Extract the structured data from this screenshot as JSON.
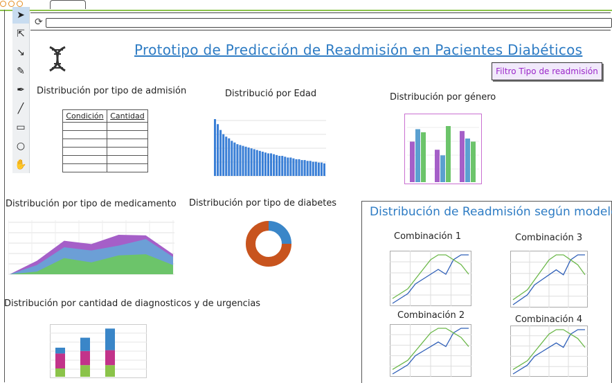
{
  "app": {
    "title": "Prototipo de Predicción de Readmisión en Pacientes Diabéticos",
    "filter_button": "Filtro Tipo de readmisión",
    "colors": {
      "title_blue": "#2e7cc4",
      "filter_text": "#9b27c9",
      "filter_bg": "#f1e9fb"
    }
  },
  "toolbar": {
    "tools": [
      {
        "name": "selection-arrow-icon",
        "glyph": "➤"
      },
      {
        "name": "hollow-arrow-icon",
        "glyph": "⇱"
      },
      {
        "name": "pen-select-icon",
        "glyph": "↘"
      },
      {
        "name": "pencil-icon",
        "glyph": "✎"
      },
      {
        "name": "ink-pen-icon",
        "glyph": "✒"
      },
      {
        "name": "line-icon",
        "glyph": "╱"
      },
      {
        "name": "rectangle-icon",
        "glyph": "▭"
      },
      {
        "name": "circle-icon",
        "glyph": "○"
      },
      {
        "name": "hand-icon",
        "glyph": "✋"
      }
    ]
  },
  "sections": {
    "admission": {
      "title": "Distribución por tipo de admisión",
      "columns": [
        "Condición",
        "Cantidad"
      ],
      "rows": 6
    },
    "age": {
      "title": "Distribució por Edad"
    },
    "gender": {
      "title": "Distribución por género"
    },
    "medication": {
      "title": "Distribución por tipo de medicamento"
    },
    "diabetes": {
      "title": "Distribución por tipo de diabetes"
    },
    "diagnostics": {
      "title": "Distribución por cantidad de diagnosticos y de urgencias"
    },
    "model_panel": {
      "title": "Distribución de Readmisión según modelo",
      "combinations": [
        "Combinación 1",
        "Combinación 3",
        "Combinación 2",
        "Combinación 4"
      ]
    }
  },
  "chart_data": [
    {
      "type": "bar",
      "id": "age",
      "values": [
        68,
        62,
        55,
        50,
        47,
        45,
        42,
        40,
        38,
        37,
        36,
        35,
        34,
        33,
        32,
        31,
        30,
        29,
        28,
        27,
        27,
        26,
        25,
        24,
        24,
        23,
        22,
        22,
        21,
        20,
        20,
        19,
        19,
        18,
        18,
        17,
        17,
        16,
        16,
        15
      ]
    },
    {
      "type": "bar",
      "id": "gender",
      "categories": [
        "1",
        "2",
        "3"
      ],
      "series": [
        {
          "values": [
            65,
            52,
            82
          ],
          "color": "#a55fc8"
        },
        {
          "values": [
            85,
            43,
            70
          ],
          "color": "#5ba0d0"
        },
        {
          "values": [
            80,
            90,
            65
          ],
          "color": "#6cc46a"
        }
      ]
    },
    {
      "type": "area",
      "id": "medication",
      "x": [
        0,
        1,
        2,
        3,
        4,
        5,
        6
      ],
      "series": [
        {
          "values": [
            0,
            5,
            30,
            22,
            35,
            37,
            17
          ],
          "color": "#6cc46a"
        },
        {
          "values": [
            0,
            12,
            20,
            22,
            18,
            28,
            15
          ],
          "color": "#6c9fd6"
        },
        {
          "values": [
            0,
            8,
            12,
            12,
            20,
            7,
            5
          ],
          "color": "#a55fc8"
        }
      ]
    },
    {
      "type": "pie",
      "id": "diabetes",
      "slices": [
        {
          "value": 25,
          "color": "#3a86c8"
        },
        {
          "value": 75,
          "color": "#c8541e"
        }
      ]
    },
    {
      "type": "bar",
      "id": "diagnostics",
      "categories": [
        "1",
        "2",
        "3"
      ],
      "series": [
        {
          "values": [
            10,
            14,
            14
          ],
          "color": "#8bc34a"
        },
        {
          "values": [
            18,
            17,
            18
          ],
          "color": "#c2338a"
        },
        {
          "values": [
            7,
            16,
            26
          ],
          "color": "#3a86c8"
        }
      ]
    },
    {
      "type": "line",
      "id": "combination",
      "x": [
        0,
        1,
        2,
        3,
        4,
        5,
        6,
        7,
        8,
        9,
        10
      ],
      "series": [
        {
          "values": [
            0,
            1,
            2,
            4,
            5,
            6,
            7,
            6,
            9,
            10,
            10
          ],
          "color": "#2f5fb8"
        },
        {
          "values": [
            1,
            2,
            3,
            5,
            7,
            9,
            10,
            10,
            9,
            8,
            6
          ],
          "color": "#6cb84a"
        }
      ]
    }
  ]
}
